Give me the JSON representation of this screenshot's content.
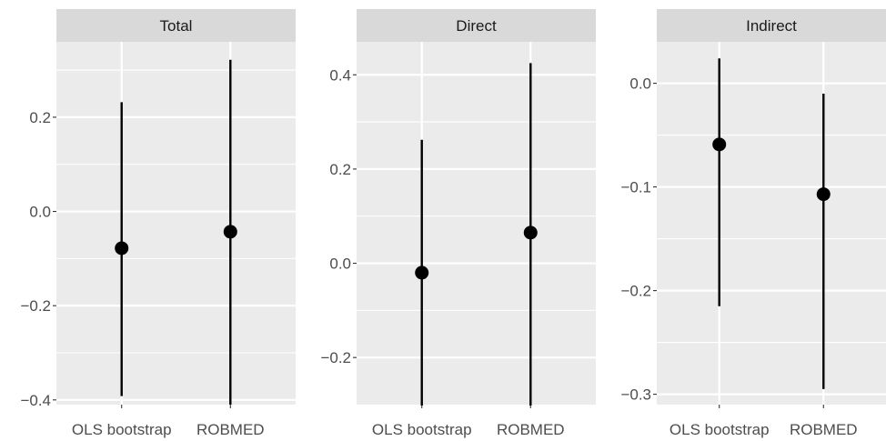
{
  "chart_data": [
    {
      "type": "pointrange",
      "facet": "Total",
      "categories": [
        "OLS bootstrap",
        "ROBMED"
      ],
      "estimate": [
        -0.078,
        -0.043
      ],
      "lower": [
        -0.392,
        -0.41
      ],
      "upper": [
        0.232,
        0.322
      ],
      "ylim": [
        -0.41,
        0.36
      ],
      "yticks": [
        -0.4,
        -0.2,
        0.0,
        0.2
      ],
      "ytick_labels": [
        "−0.4",
        "−0.2",
        "0.0",
        "0.2"
      ],
      "minor_yticks": [
        -0.3,
        -0.1,
        0.1,
        0.3
      ],
      "grid": true
    },
    {
      "type": "pointrange",
      "facet": "Direct",
      "categories": [
        "OLS bootstrap",
        "ROBMED"
      ],
      "estimate": [
        -0.02,
        0.065
      ],
      "lower": [
        -0.302,
        -0.302
      ],
      "upper": [
        0.262,
        0.425
      ],
      "ylim": [
        -0.3,
        0.47
      ],
      "yticks": [
        -0.2,
        0.0,
        0.2,
        0.4
      ],
      "ytick_labels": [
        "−0.2",
        "0.0",
        "0.2",
        "0.4"
      ],
      "minor_yticks": [
        -0.1,
        0.1,
        0.3
      ],
      "grid": true
    },
    {
      "type": "pointrange",
      "facet": "Indirect",
      "categories": [
        "OLS bootstrap",
        "ROBMED"
      ],
      "estimate": [
        -0.059,
        -0.107
      ],
      "lower": [
        -0.215,
        -0.295
      ],
      "upper": [
        0.024,
        -0.01
      ],
      "ylim": [
        -0.31,
        0.04
      ],
      "yticks": [
        -0.3,
        -0.2,
        -0.1,
        0.0
      ],
      "ytick_labels": [
        "−0.3",
        "−0.2",
        "−0.1",
        "0.0"
      ],
      "minor_yticks": [
        -0.25,
        -0.15,
        -0.05
      ],
      "grid": true
    }
  ]
}
